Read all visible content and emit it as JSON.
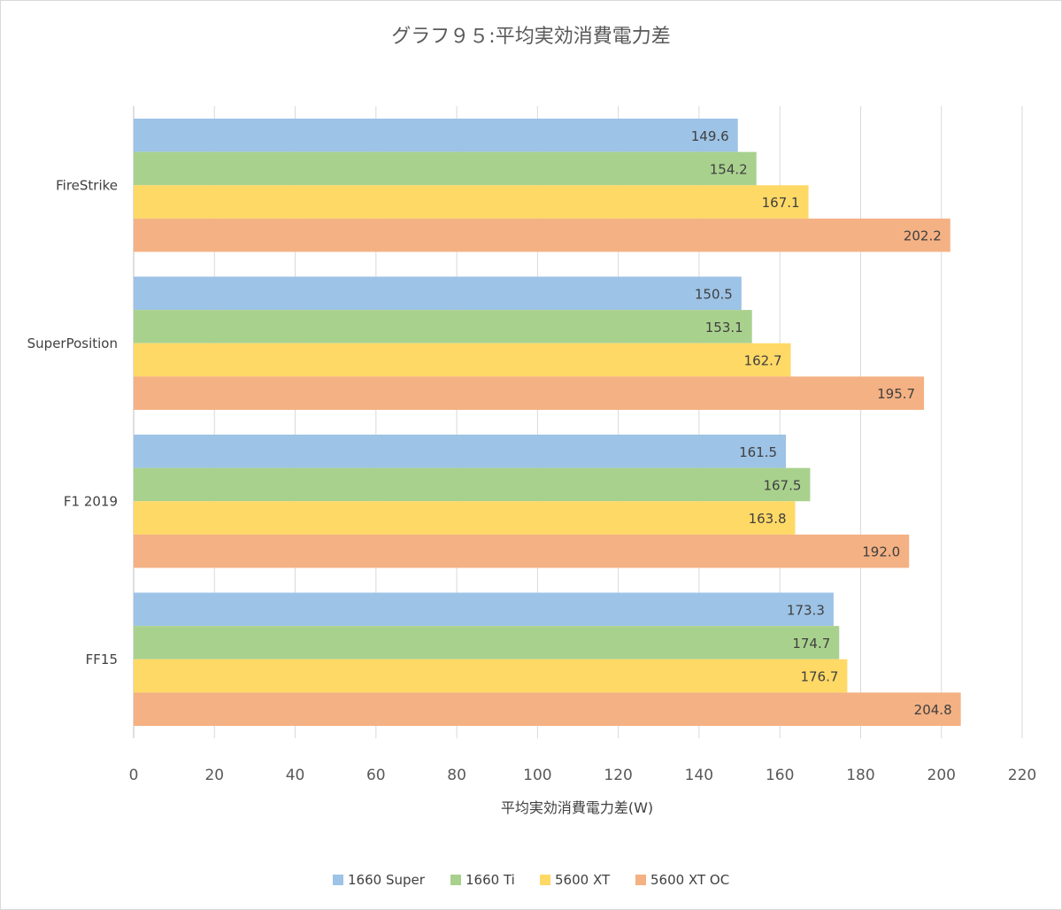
{
  "chart_data": {
    "type": "bar",
    "orientation": "horizontal",
    "title": "グラフ９５:平均実効消費電力差",
    "xlabel": "平均実効消費電力差(W)",
    "ylabel": "",
    "xlim": [
      0,
      220
    ],
    "xticks": [
      0,
      20,
      40,
      60,
      80,
      100,
      120,
      140,
      160,
      180,
      200,
      220
    ],
    "grid": "vertical",
    "legend_position": "bottom",
    "categories": [
      "FireStrike",
      "SuperPosition",
      "F1 2019",
      "FF15"
    ],
    "series": [
      {
        "name": "1660 Super",
        "color": "#9dc3e6",
        "values": [
          149.6,
          150.5,
          161.5,
          173.3
        ]
      },
      {
        "name": "1660 Ti",
        "color": "#a9d18e",
        "values": [
          154.2,
          153.1,
          167.5,
          174.7
        ]
      },
      {
        "name": "5600 XT",
        "color": "#ffd966",
        "values": [
          167.1,
          162.7,
          163.8,
          176.7
        ]
      },
      {
        "name": "5600 XT OC",
        "color": "#f4b183",
        "values": [
          202.2,
          195.7,
          192.0,
          204.8
        ]
      }
    ]
  }
}
